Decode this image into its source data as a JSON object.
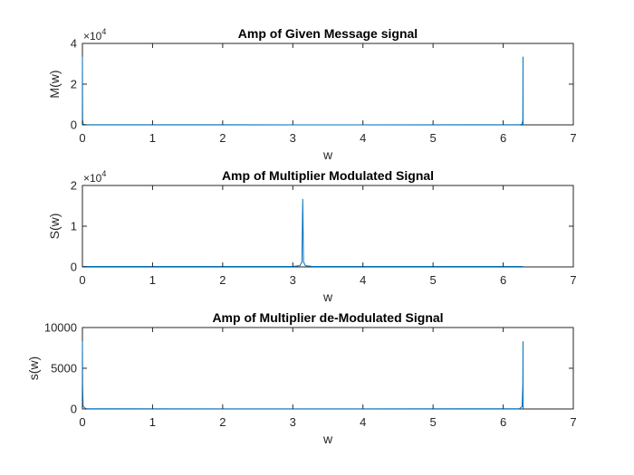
{
  "chart_data": [
    {
      "type": "line",
      "title": "Amp of Given Message signal",
      "xlabel": "w",
      "ylabel": "M(w)",
      "xlim": [
        0,
        7
      ],
      "ylim": [
        0,
        40000
      ],
      "xticks": [
        "0",
        "1",
        "2",
        "3",
        "4",
        "5",
        "6",
        "7"
      ],
      "yticks": [
        "0",
        "2",
        "4"
      ],
      "ytick_values": [
        0,
        20000,
        40000
      ],
      "multiplier": {
        "base": "×10",
        "exponent": "4"
      },
      "series": [
        {
          "color": "#0072BD",
          "x": [
            0,
            0.003,
            0.01,
            0.05,
            3.14,
            6.23,
            6.27,
            6.28,
            6.283,
            6.2832
          ],
          "y": [
            33500,
            2500,
            300,
            60,
            20,
            60,
            300,
            2500,
            33500,
            0
          ]
        }
      ]
    },
    {
      "type": "line",
      "title": "Amp of Multiplier Modulated Signal",
      "xlabel": "w",
      "ylabel": "S(w)",
      "xlim": [
        0,
        7
      ],
      "ylim": [
        0,
        20000
      ],
      "xticks": [
        "0",
        "1",
        "2",
        "3",
        "4",
        "5",
        "6",
        "7"
      ],
      "yticks": [
        "0",
        "1",
        "2"
      ],
      "ytick_values": [
        0,
        10000,
        20000
      ],
      "multiplier": {
        "base": "×10",
        "exponent": "4"
      },
      "series": [
        {
          "color": "#0072BD",
          "x": [
            0,
            0.05,
            3.0,
            3.1,
            3.13,
            3.1416,
            3.153,
            3.18,
            3.28,
            6.2832
          ],
          "y": [
            100,
            100,
            100,
            300,
            1200,
            16700,
            1200,
            300,
            100,
            100
          ]
        }
      ]
    },
    {
      "type": "line",
      "title": "Amp of Multiplier de-Modulated Signal",
      "xlabel": "w",
      "ylabel": "s(w)",
      "xlim": [
        0,
        7
      ],
      "ylim": [
        0,
        10000
      ],
      "xticks": [
        "0",
        "1",
        "2",
        "3",
        "4",
        "5",
        "6",
        "7"
      ],
      "yticks": [
        "0",
        "5000",
        "10000"
      ],
      "ytick_values": [
        0,
        5000,
        10000
      ],
      "multiplier": null,
      "series": [
        {
          "color": "#0072BD",
          "x": [
            0,
            0.003,
            0.01,
            0.05,
            3.14,
            6.23,
            6.27,
            6.28,
            6.283,
            6.2832
          ],
          "y": [
            8300,
            3000,
            300,
            30,
            10,
            30,
            300,
            3000,
            8300,
            0
          ]
        }
      ]
    }
  ]
}
